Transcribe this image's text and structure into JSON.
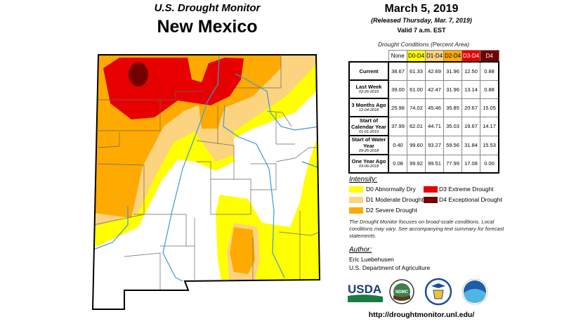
{
  "title": "U.S. Drought Monitor",
  "state": "New Mexico",
  "date": "March 5, 2019",
  "released": "(Released Thursday, Mar. 7, 2019)",
  "valid": "Valid 7 a.m. EST",
  "table": {
    "caption": "Drought Conditions (Percent Area)",
    "columns": [
      "None",
      "D0-D4",
      "D1-D4",
      "D2-D4",
      "D3-D4",
      "D4"
    ],
    "column_colors": [
      "#ffffff",
      "#ffff00",
      "#fcd37f",
      "#ffaa00",
      "#e60000",
      "#730000"
    ],
    "rows": [
      {
        "label": "Current",
        "date": "",
        "values": [
          "38.67",
          "61.33",
          "42.69",
          "31.96",
          "12.50",
          "0.88"
        ]
      },
      {
        "label": "Last Week",
        "date": "02-26-2019",
        "values": [
          "39.00",
          "61.00",
          "42.47",
          "31.96",
          "13.14",
          "0.88"
        ]
      },
      {
        "label": "3 Months Ago",
        "date": "12-04-2018",
        "values": [
          "25.98",
          "74.02",
          "45.46",
          "35.85",
          "20.67",
          "15.05"
        ]
      },
      {
        "label": "Start of Calendar Year",
        "date": "01-01-2019",
        "values": [
          "37.99",
          "62.01",
          "44.71",
          "35.03",
          "19.67",
          "14.17"
        ]
      },
      {
        "label": "Start of Water Year",
        "date": "09-25-2018",
        "values": [
          "0.40",
          "99.60",
          "93.27",
          "59.56",
          "31.84",
          "15.53"
        ]
      },
      {
        "label": "One Year Ago",
        "date": "03-06-2018",
        "values": [
          "0.08",
          "99.92",
          "99.51",
          "77.99",
          "17.08",
          "0.00"
        ]
      }
    ]
  },
  "legend": {
    "title": "Intensity:",
    "items": [
      {
        "label": "D0 Abnormally Dry",
        "color": "#ffff00"
      },
      {
        "label": "D1 Moderate Drought",
        "color": "#fcd37f"
      },
      {
        "label": "D2 Severe Drought",
        "color": "#ffaa00"
      },
      {
        "label": "D3 Extreme Drought",
        "color": "#e60000"
      },
      {
        "label": "D4 Exceptional Drought",
        "color": "#730000"
      }
    ]
  },
  "note": "The Drought Monitor focuses on broad-scale conditions. Local conditions may vary. See accompanying text summary for forecast statements.",
  "author": {
    "title": "Author:",
    "name": "Eric Luebehusen",
    "org": "U.S. Department of Agriculture"
  },
  "logos": [
    "USDA",
    "NDMC",
    "Department of Commerce",
    "NOAA"
  ],
  "url": "http://droughtmonitor.unl.edu/"
}
